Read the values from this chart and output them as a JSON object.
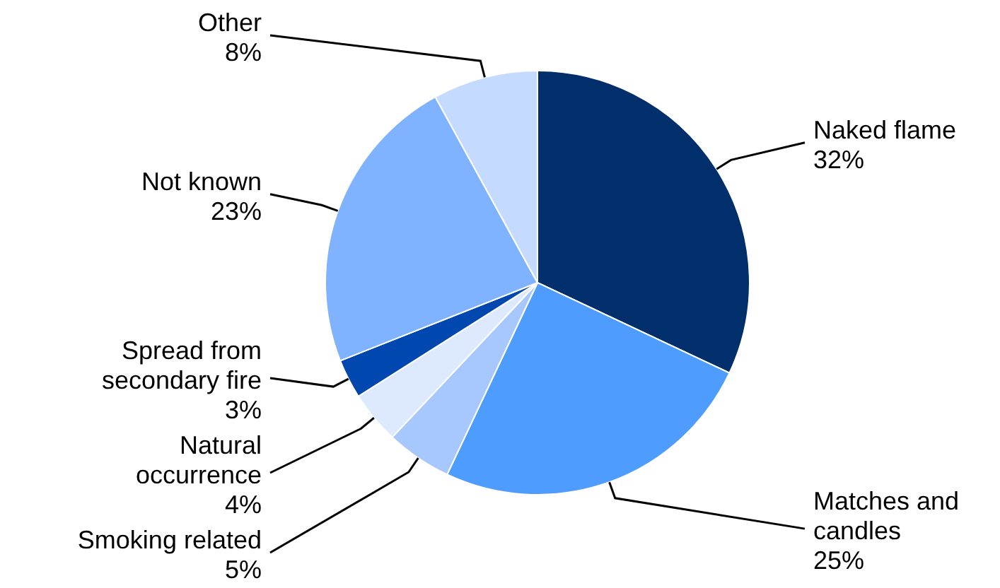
{
  "chart_data": {
    "type": "pie",
    "categories": [
      "Naked flame",
      "Matches and candles",
      "Smoking related",
      "Natural occurrence",
      "Spread from secondary fire",
      "Not known",
      "Other"
    ],
    "values": [
      32,
      25,
      5,
      4,
      3,
      23,
      8
    ],
    "value_labels": [
      "32%",
      "25%",
      "5%",
      "4%",
      "3%",
      "23%",
      "8%"
    ],
    "colors": [
      "#002f6c",
      "#4f9cff",
      "#a6c8ff",
      "#dce9ff",
      "#0048b0",
      "#80b3ff",
      "#c4dbff"
    ]
  }
}
